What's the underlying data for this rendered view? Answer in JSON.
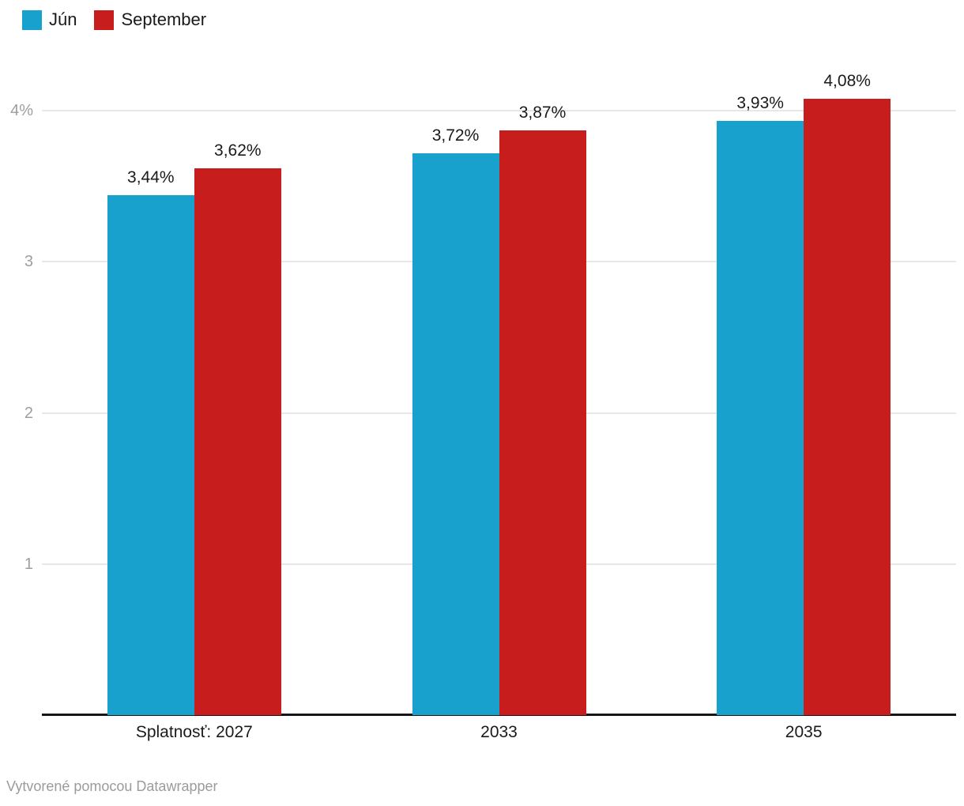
{
  "footer": {
    "attribution": "Vytvorené pomocou Datawrapper"
  },
  "colors": {
    "series_jun": "#18a1cd",
    "series_september": "#c71e1d",
    "gridline": "#e7e7e7",
    "axis_line": "#161616",
    "tick_label": "#9e9e9e",
    "text": "#1a1a1a",
    "attribution_text": "#9b9b9b",
    "background": "#ffffff"
  },
  "chart_data": {
    "type": "bar",
    "title": "",
    "xlabel": "",
    "ylabel": "",
    "categories": [
      "Splatnosť: 2027",
      "2033",
      "2035"
    ],
    "series": [
      {
        "name": "Jún",
        "color": "#18a1cd",
        "values": [
          3.44,
          3.72,
          3.93
        ],
        "labels": [
          "3,44%",
          "3,72%",
          "3,93%"
        ]
      },
      {
        "name": "September",
        "color": "#c71e1d",
        "values": [
          3.62,
          3.87,
          4.08
        ],
        "labels": [
          "3,62%",
          "3,87%",
          "4,08%"
        ]
      }
    ],
    "yticks": [
      {
        "value": 4,
        "label": "4%"
      },
      {
        "value": 3,
        "label": "3"
      },
      {
        "value": 2,
        "label": "2"
      },
      {
        "value": 1,
        "label": "1"
      }
    ],
    "ylim": [
      0,
      4.27
    ],
    "grid": "horizontal",
    "legend_position": "top-left",
    "value_labels_shown": true,
    "value_label_format": "percent-comma-decimal"
  }
}
